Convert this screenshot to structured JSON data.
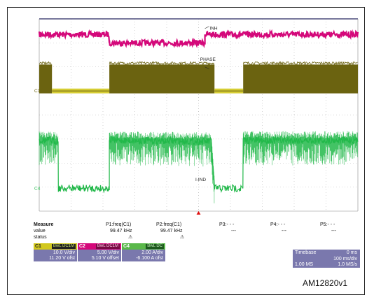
{
  "figure_id": "AM12820v1",
  "colors": {
    "ch1": "#6b6310",
    "ch1_label": "#d2c81e",
    "ch2": "#d4087a",
    "ch4": "#22b84a",
    "grid": "#9a9a9a",
    "trigger": "#e01010",
    "timebase_panel": "#7a78ad",
    "ch1_panel": "#7a78ad",
    "ch4_panel": "#5ab84a"
  },
  "chart_data": {
    "type": "line",
    "title": "",
    "xlabel": "",
    "ylabel": "",
    "grid": true,
    "x_unit": "ms",
    "xlim": [
      0,
      1000
    ],
    "y_unit": "div",
    "ylim": [
      -4,
      4
    ],
    "series": [
      {
        "name": "INH",
        "channel": "C2",
        "marker_label": "INH",
        "color": "#d4087a",
        "noise_div": 0.12,
        "x": [
          0,
          220,
          220,
          520,
          520,
          1000
        ],
        "y": [
          3.35,
          3.35,
          3.0,
          3.0,
          3.35,
          3.35
        ]
      },
      {
        "name": "PHASE",
        "channel": "C1",
        "marker_label": "PHASE",
        "ground_label": "C1",
        "color": "#6b6310",
        "switching": true,
        "high_div": 2.1,
        "low_div": 0.9,
        "idle_div": 1.0,
        "segments": [
          {
            "x0": 0,
            "x1": 40,
            "mode": "switching"
          },
          {
            "x0": 40,
            "x1": 220,
            "mode": "idle"
          },
          {
            "x0": 220,
            "x1": 550,
            "mode": "switching"
          },
          {
            "x0": 550,
            "x1": 640,
            "mode": "idle"
          },
          {
            "x0": 640,
            "x1": 1000,
            "mode": "switching"
          }
        ]
      },
      {
        "name": "I-IND",
        "channel": "C4",
        "marker_label": "I-IND",
        "ground_label": "C4",
        "color": "#22b84a",
        "noise_div": 0.15,
        "x": [
          0,
          30,
          60,
          60,
          220,
          220,
          540,
          550,
          550,
          640,
          640,
          1000
        ],
        "y": [
          -1.05,
          -1.05,
          -1.1,
          -3.05,
          -3.05,
          -1.05,
          -1.1,
          -3.05,
          -3.05,
          -3.05,
          -1.05,
          -1.05
        ]
      }
    ]
  },
  "measure": {
    "header": {
      "label": "Measure",
      "p1": "P1:freq(C1)",
      "p2": "P2:freq(C1)",
      "p3": "P3:- - -",
      "p4": "P4:- - -",
      "p5": "P5:- - -"
    },
    "value": {
      "label": "value",
      "p1": "99.47 kHz",
      "p2": "99.47 kHz",
      "p3": "---",
      "p4": "---",
      "p5": "---"
    },
    "status": {
      "label": "status",
      "p1": "⚠",
      "p2": "⚠"
    }
  },
  "channels": [
    {
      "name": "C1",
      "tags": "BwL DC1M",
      "scale": "10.0 V/div",
      "offset": "11.20 V ofst"
    },
    {
      "name": "C2",
      "tags": "BwL DC1M",
      "scale": "5.00 V/div",
      "offset": "5.10 V offset"
    },
    {
      "name": "C4",
      "tags": "BwL DC",
      "scale": "2.00 A/div",
      "offset": "-6.100 A ofst"
    }
  ],
  "timebase": {
    "label": "Timebase",
    "delay": "0 ms",
    "scale": "100 ms/div",
    "samples": "1.00 MS",
    "rate": "1.0 MS/s"
  }
}
